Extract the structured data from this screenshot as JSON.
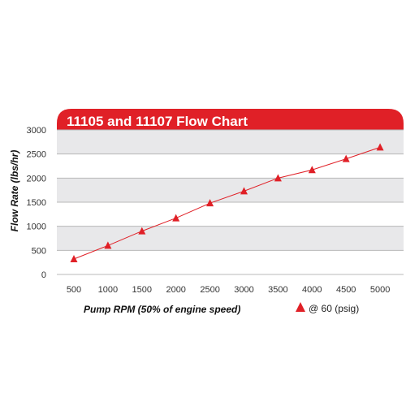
{
  "chart_data": {
    "type": "line",
    "title": "11105 and 11107 Flow Chart",
    "xlabel": "Pump RPM (50% of engine speed)",
    "ylabel": "Flow Rate (lbs/hr)",
    "x": [
      500,
      1000,
      1500,
      2000,
      2500,
      3000,
      3500,
      4000,
      4500,
      5000
    ],
    "x_ticks": [
      500,
      1000,
      1500,
      2000,
      2500,
      3000,
      3500,
      4000,
      4500,
      5000
    ],
    "y_ticks": [
      0,
      500,
      1000,
      1500,
      2000,
      2500,
      3000
    ],
    "ylim": [
      0,
      3000
    ],
    "series": [
      {
        "name": "@ 60 (psig)",
        "values": [
          320,
          600,
          900,
          1170,
          1480,
          1730,
          2000,
          2170,
          2400,
          2640
        ]
      }
    ],
    "grid": "horizontal",
    "legend": "bottom-right",
    "colors": {
      "accent": "#e02027",
      "band_dark": "#e8e8ea",
      "band_light": "#ffffff",
      "grid": "#b8b8b8"
    }
  }
}
